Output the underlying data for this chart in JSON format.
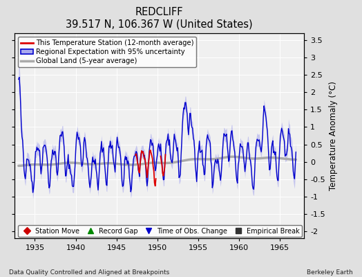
{
  "title": "REDCLIFF",
  "subtitle": "39.517 N, 106.367 W (United States)",
  "ylabel": "Temperature Anomaly (°C)",
  "xlabel_left": "Data Quality Controlled and Aligned at Breakpoints",
  "xlabel_right": "Berkeley Earth",
  "xlim": [
    1932.5,
    1968
  ],
  "ylim": [
    -2.2,
    3.7
  ],
  "yticks": [
    -2,
    -1.5,
    -1,
    -0.5,
    0,
    0.5,
    1,
    1.5,
    2,
    2.5,
    3,
    3.5
  ],
  "xticks": [
    1935,
    1940,
    1945,
    1950,
    1955,
    1960,
    1965
  ],
  "bg_color": "#e0e0e0",
  "plot_bg_color": "#f0f0f0",
  "regional_color": "#0000cc",
  "regional_fill": "#aaaaee",
  "station_color": "#dd0000",
  "global_color": "#aaaaaa",
  "legend_entries": [
    "This Temperature Station (12-month average)",
    "Regional Expectation with 95% uncertainty",
    "Global Land (5-year average)"
  ],
  "marker_legend": [
    {
      "marker": "D",
      "color": "#cc0000",
      "label": "Station Move"
    },
    {
      "marker": "^",
      "color": "#008800",
      "label": "Record Gap"
    },
    {
      "marker": "v",
      "color": "#0000cc",
      "label": "Time of Obs. Change"
    },
    {
      "marker": "s",
      "color": "#333333",
      "label": "Empirical Break"
    }
  ]
}
